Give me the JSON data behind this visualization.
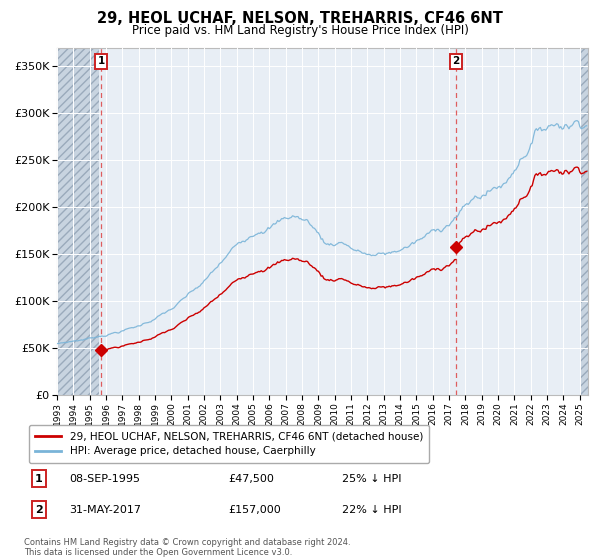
{
  "title": "29, HEOL UCHAF, NELSON, TREHARRIS, CF46 6NT",
  "subtitle": "Price paid vs. HM Land Registry's House Price Index (HPI)",
  "ylabel_ticks": [
    "£0",
    "£50K",
    "£100K",
    "£150K",
    "£200K",
    "£250K",
    "£300K",
    "£350K"
  ],
  "ytick_values": [
    0,
    50000,
    100000,
    150000,
    200000,
    250000,
    300000,
    350000
  ],
  "ylim": [
    0,
    370000
  ],
  "xlim_start": 1993.0,
  "xlim_end": 2025.5,
  "hatch_left_end": 1995.58,
  "hatch_right_start": 2025.0,
  "sale1_date": 1995.69,
  "sale1_price": 47500,
  "sale1_label": "1",
  "sale2_date": 2017.42,
  "sale2_price": 157000,
  "sale2_label": "2",
  "hpi_color": "#7ab4d8",
  "sale_color": "#cc0000",
  "bg_color": "#e8eef5",
  "hatch_color": "#c8d4e0",
  "legend_entry1": "29, HEOL UCHAF, NELSON, TREHARRIS, CF46 6NT (detached house)",
  "legend_entry2": "HPI: Average price, detached house, Caerphilly",
  "table_row1_num": "1",
  "table_row1_date": "08-SEP-1995",
  "table_row1_price": "£47,500",
  "table_row1_hpi": "25% ↓ HPI",
  "table_row2_num": "2",
  "table_row2_date": "31-MAY-2017",
  "table_row2_price": "£157,000",
  "table_row2_hpi": "22% ↓ HPI",
  "footer": "Contains HM Land Registry data © Crown copyright and database right 2024.\nThis data is licensed under the Open Government Licence v3.0.",
  "xticks": [
    1993,
    1994,
    1995,
    1996,
    1997,
    1998,
    1999,
    2000,
    2001,
    2002,
    2003,
    2004,
    2005,
    2006,
    2007,
    2008,
    2009,
    2010,
    2011,
    2012,
    2013,
    2014,
    2015,
    2016,
    2017,
    2018,
    2019,
    2020,
    2021,
    2022,
    2023,
    2024,
    2025
  ]
}
